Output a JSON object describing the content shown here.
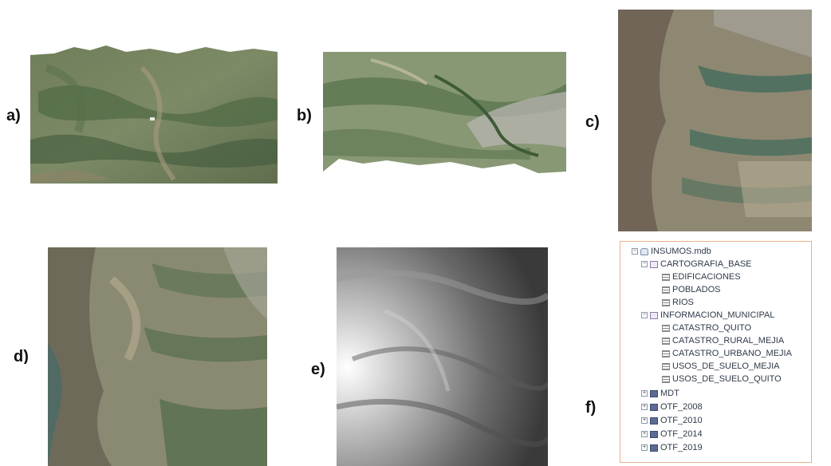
{
  "panels": {
    "a": "a)",
    "b": "b)",
    "c": "c)",
    "d": "d)",
    "e": "e)",
    "f": "f)"
  },
  "images": {
    "a": "aerial-orthophoto-icon",
    "b": "aerial-orthophoto-icon",
    "c": "aerial-orthophoto-icon",
    "d": "aerial-orthophoto-icon",
    "e": "grayscale-elevation-model-icon"
  },
  "tree": {
    "root": "INSUMOS.mdb",
    "groups": [
      {
        "label": "CARTOGRAFIA_BASE",
        "items": [
          "EDIFICACIONES",
          "POBLADOS",
          "RIOS"
        ]
      },
      {
        "label": "INFORMACION_MUNICIPAL",
        "items": [
          "CATASTRO_QUITO",
          "CATASTRO_RURAL_MEJIA",
          "CATASTRO_URBANO_MEJIA",
          "USOS_DE_SUELO_MEJIA",
          "USOS_DE_SUELO_QUITO"
        ]
      }
    ],
    "rasters": [
      "MDT",
      "OTF_2008",
      "OTF_2010",
      "OTF_2014",
      "OTF_2019"
    ]
  },
  "colors": {
    "frame": "#e9b08e"
  }
}
